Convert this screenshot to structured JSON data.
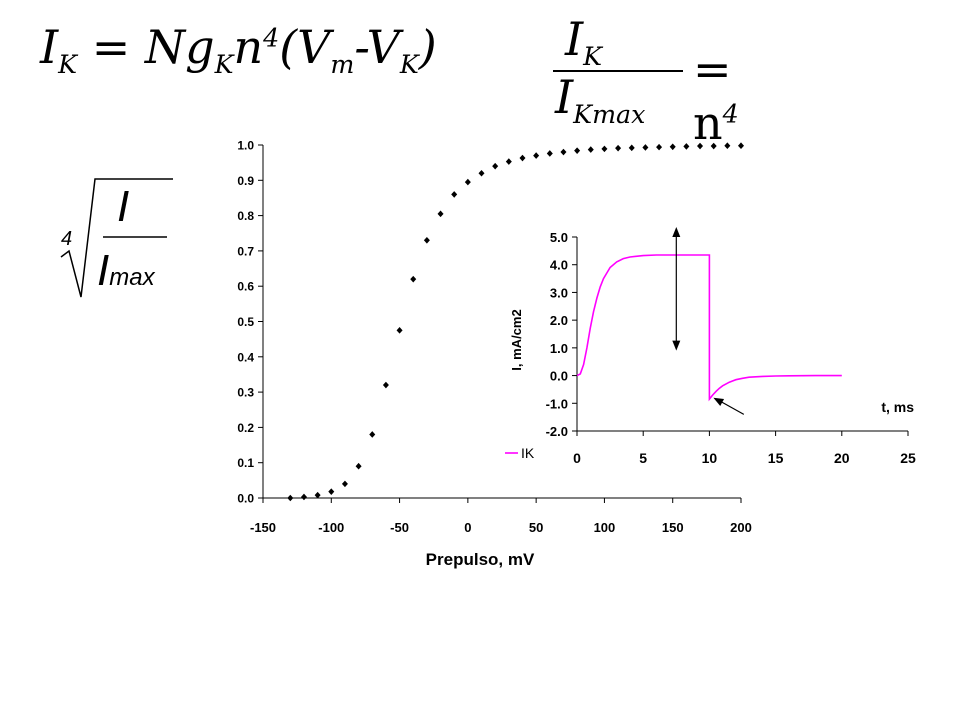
{
  "equations": {
    "eq1_lhs": "I",
    "eq1_lhs_sub": "K",
    "eq1_eq": "=",
    "eq1_N": "Ng",
    "eq1_g_sub": "K",
    "eq1_n": "n",
    "eq1_n_sup": "4",
    "eq1_paren_open": "(V",
    "eq1_m_sub": "m",
    "eq1_minus": "-V",
    "eq1_vk_sub": "K",
    "eq1_paren_close": ")",
    "eq2_num": "I",
    "eq2_num_sub": "K",
    "eq2_den": "I",
    "eq2_den_sub": "Kmax",
    "eq2_rhs": "= n",
    "eq2_rhs_sup": "4",
    "eq3_root_index": "4",
    "eq3_num": "I",
    "eq3_den": "I",
    "eq3_den_sub": "max"
  },
  "chart_data": [
    {
      "type": "scatter",
      "xlabel": "Prepulso, mV",
      "ylabel": "",
      "xlim": [
        -150,
        200
      ],
      "ylim": [
        0,
        1
      ],
      "xticks": [
        "-150",
        "-100",
        "-50",
        "0",
        "50",
        "100",
        "150",
        "200"
      ],
      "yticks": [
        "0.0",
        "0.1",
        "0.2",
        "0.3",
        "0.4",
        "0.5",
        "0.6",
        "0.7",
        "0.8",
        "0.9",
        "1.0"
      ],
      "marker_color": "#000000",
      "x": [
        -130,
        -120,
        -110,
        -100,
        -90,
        -80,
        -70,
        -60,
        -50,
        -40,
        -30,
        -20,
        -10,
        0,
        10,
        20,
        30,
        40,
        50,
        60,
        70,
        80,
        90,
        100,
        110,
        120,
        130,
        140,
        150,
        160,
        170,
        180,
        190,
        200
      ],
      "y": [
        0.0,
        0.003,
        0.008,
        0.018,
        0.04,
        0.09,
        0.18,
        0.32,
        0.475,
        0.62,
        0.73,
        0.805,
        0.86,
        0.895,
        0.92,
        0.94,
        0.953,
        0.963,
        0.97,
        0.976,
        0.98,
        0.984,
        0.987,
        0.989,
        0.991,
        0.992,
        0.993,
        0.994,
        0.995,
        0.996,
        0.997,
        0.997,
        0.998,
        0.998
      ]
    },
    {
      "type": "line",
      "xlabel": "t, ms",
      "ylabel": "I, mA/cm2",
      "xlim": [
        0,
        25
      ],
      "ylim": [
        -2,
        5
      ],
      "xticks": [
        "0",
        "5",
        "10",
        "15",
        "20",
        "25"
      ],
      "yticks": [
        "5.0",
        "4.0",
        "3.0",
        "2.0",
        "1.0",
        "0.0",
        "-1.0",
        "-2.0"
      ],
      "legend": "left",
      "series": [
        {
          "name": "IK",
          "color": "#ff00ff",
          "x": [
            0,
            0.25,
            0.5,
            0.75,
            1,
            1.25,
            1.5,
            1.75,
            2,
            2.5,
            3,
            3.5,
            4,
            5,
            6,
            7,
            8,
            9,
            10,
            10,
            10.25,
            10.5,
            10.75,
            11,
            11.5,
            12,
            12.5,
            13,
            14,
            15,
            16,
            17,
            18,
            19,
            20
          ],
          "y": [
            0,
            0.06,
            0.4,
            1.0,
            1.7,
            2.3,
            2.8,
            3.2,
            3.5,
            3.9,
            4.1,
            4.22,
            4.28,
            4.33,
            4.35,
            4.35,
            4.35,
            4.35,
            4.35,
            -0.85,
            -0.7,
            -0.57,
            -0.46,
            -0.37,
            -0.24,
            -0.15,
            -0.1,
            -0.06,
            -0.03,
            -0.015,
            -0.008,
            -0.004,
            -0.002,
            -0.001,
            0
          ]
        }
      ]
    }
  ]
}
